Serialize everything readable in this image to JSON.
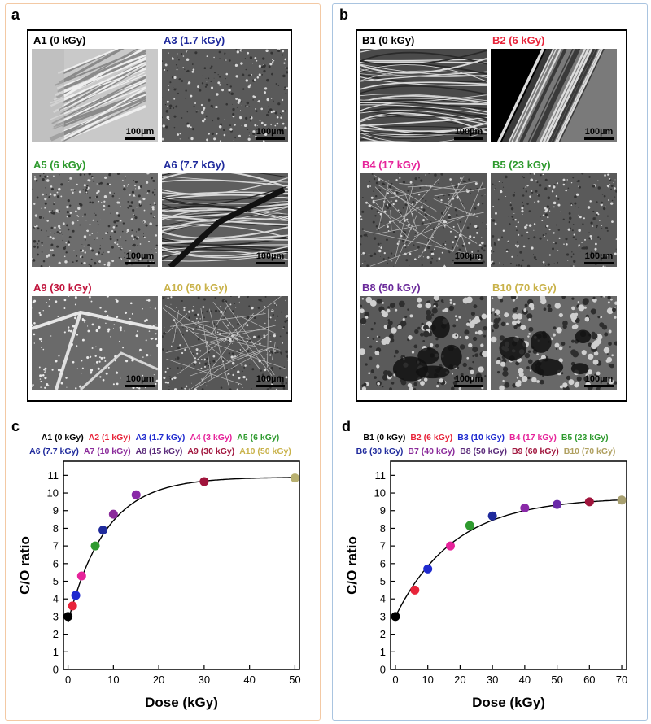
{
  "panel_a": {
    "letter": "a",
    "images": [
      {
        "label": "A1 (0 kGy)",
        "color": "#000000",
        "scale": "100µm",
        "texture": "fibrous-bundle"
      },
      {
        "label": "A3 (1.7 kGy)",
        "color": "#1f2a9c",
        "scale": "100µm",
        "texture": "fine-grain"
      },
      {
        "label": "A5 (6 kGy)",
        "color": "#2e9a2e",
        "scale": "100µm",
        "texture": "speckled"
      },
      {
        "label": "A6 (7.7 kGy)",
        "color": "#1f2a9c",
        "scale": "100µm",
        "texture": "diagonal-crack"
      },
      {
        "label": "A9 (30 kGy)",
        "color": "#c0143c",
        "scale": "100µm",
        "texture": "plates"
      },
      {
        "label": "A10 (50 kGy)",
        "color": "#c9b24a",
        "scale": "100µm",
        "texture": "rough"
      }
    ]
  },
  "panel_b": {
    "letter": "b",
    "images": [
      {
        "label": "B1 (0 kGy)",
        "color": "#000000",
        "scale": "100µm",
        "texture": "wavy-fibers"
      },
      {
        "label": "B2 (6 kGy)",
        "color": "#e8243a",
        "scale": "100µm",
        "texture": "black-edge"
      },
      {
        "label": "B4 (17 kGy)",
        "color": "#e6239a",
        "scale": "100µm",
        "texture": "rough"
      },
      {
        "label": "B5 (23 kGy)",
        "color": "#2e9a2e",
        "scale": "100µm",
        "texture": "fine-grain"
      },
      {
        "label": "B8 (50 kGy)",
        "color": "#6a2a9a",
        "scale": "100µm",
        "texture": "porous"
      },
      {
        "label": "B10 (70 kGy)",
        "color": "#c9b24a",
        "scale": "100µm",
        "texture": "porous-light"
      }
    ]
  },
  "chart_data": [
    {
      "panel_letter": "c",
      "type": "scatter",
      "title": "",
      "xlabel": "Dose (kGy)",
      "ylabel": "C/O ratio",
      "xlim": [
        -1,
        51
      ],
      "ylim": [
        0,
        11.8
      ],
      "xticks": [
        0,
        10,
        20,
        30,
        40,
        50
      ],
      "yticks": [
        0,
        1,
        2,
        3,
        4,
        5,
        6,
        7,
        8,
        9,
        10,
        11
      ],
      "grid": false,
      "fit_curve": {
        "type": "exponential-saturation",
        "y0": 2.7,
        "ymax": 10.9,
        "k": 0.12
      },
      "legend": [
        {
          "name": "A1 (0 kGy)",
          "color": "#000000"
        },
        {
          "name": "A2 (1 kGy)",
          "color": "#e8243a"
        },
        {
          "name": "A3 (1.7 kGy)",
          "color": "#1f2acf"
        },
        {
          "name": "A4 (3 kGy)",
          "color": "#e6239a"
        },
        {
          "name": "A5 (6 kGy)",
          "color": "#2e9a2e"
        },
        {
          "name": "A6 (7.7 kGy)",
          "color": "#1f2a9c"
        },
        {
          "name": "A7 (10 kGy)",
          "color": "#8a2a9a"
        },
        {
          "name": "A8 (15 kGy)",
          "color": "#5a2a7a"
        },
        {
          "name": "A9 (30 kGy)",
          "color": "#a0143c"
        },
        {
          "name": "A10 (50 kGy)",
          "color": "#c9b24a"
        }
      ],
      "points": [
        {
          "x": 0,
          "y": 3.0,
          "color": "#000000"
        },
        {
          "x": 1,
          "y": 3.6,
          "color": "#e8243a"
        },
        {
          "x": 1.7,
          "y": 4.2,
          "color": "#1f2acf"
        },
        {
          "x": 3,
          "y": 5.3,
          "color": "#e6239a"
        },
        {
          "x": 6,
          "y": 7.0,
          "color": "#2e9a2e"
        },
        {
          "x": 7.7,
          "y": 7.9,
          "color": "#1f2a9c"
        },
        {
          "x": 10,
          "y": 8.8,
          "color": "#8a2a9a"
        },
        {
          "x": 15,
          "y": 9.9,
          "color": "#8a2aa8"
        },
        {
          "x": 30,
          "y": 10.65,
          "color": "#a0143c"
        },
        {
          "x": 50,
          "y": 10.85,
          "color": "#b8b070"
        }
      ]
    },
    {
      "panel_letter": "d",
      "type": "scatter",
      "title": "",
      "xlabel": "Dose (kGy)",
      "ylabel": "C/O ratio",
      "xlim": [
        -1.5,
        71.5
      ],
      "ylim": [
        0,
        11.8
      ],
      "xticks": [
        0,
        10,
        20,
        30,
        40,
        50,
        60,
        70
      ],
      "yticks": [
        0,
        1,
        2,
        3,
        4,
        5,
        6,
        7,
        8,
        9,
        10,
        11
      ],
      "grid": false,
      "fit_curve": {
        "type": "exponential-saturation",
        "y0": 3.0,
        "ymax": 9.75,
        "k": 0.055
      },
      "legend": [
        {
          "name": "B1 (0 kGy)",
          "color": "#000000"
        },
        {
          "name": "B2 (6 kGy)",
          "color": "#e8243a"
        },
        {
          "name": "B3 (10 kGy)",
          "color": "#1f2acf"
        },
        {
          "name": "B4 (17 kGy)",
          "color": "#e6239a"
        },
        {
          "name": "B5 (23 kGy)",
          "color": "#2e9a2e"
        },
        {
          "name": "B6 (30 kGy)",
          "color": "#1f2a9c"
        },
        {
          "name": "B7 (40 kGy)",
          "color": "#8a2a9a"
        },
        {
          "name": "B8 (50 kGy)",
          "color": "#5a2a7a"
        },
        {
          "name": "B9 (60 kGy)",
          "color": "#a0143c"
        },
        {
          "name": "B10 (70 kGy)",
          "color": "#b0a060"
        }
      ],
      "points": [
        {
          "x": 0,
          "y": 3.0,
          "color": "#000000"
        },
        {
          "x": 6,
          "y": 4.5,
          "color": "#e8243a"
        },
        {
          "x": 10,
          "y": 5.7,
          "color": "#1f2acf"
        },
        {
          "x": 17,
          "y": 7.0,
          "color": "#e6239a"
        },
        {
          "x": 23,
          "y": 8.15,
          "color": "#2e9a2e"
        },
        {
          "x": 30,
          "y": 8.7,
          "color": "#1f2a9c"
        },
        {
          "x": 40,
          "y": 9.15,
          "color": "#8a2aa8"
        },
        {
          "x": 50,
          "y": 9.35,
          "color": "#6a2aa8"
        },
        {
          "x": 60,
          "y": 9.5,
          "color": "#a0143c"
        },
        {
          "x": 70,
          "y": 9.6,
          "color": "#a8a070"
        }
      ]
    }
  ]
}
